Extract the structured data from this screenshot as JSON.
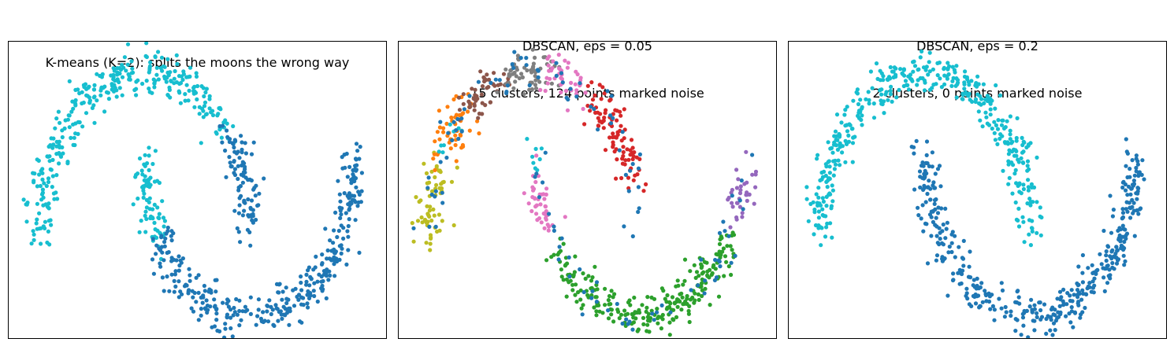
{
  "chart_data": [
    {
      "type": "scatter",
      "title_lines": [
        "K-means (K=2): splits the moons the wrong way"
      ],
      "xlabel": "",
      "ylabel": "",
      "xlim": [
        -1.3,
        2.3
      ],
      "ylim": [
        -0.65,
        1.2
      ],
      "grid": false,
      "ticks": false,
      "colors": {
        "cluster_a": "#17becf",
        "cluster_b": "#1f77b4"
      },
      "series": [
        {
          "color_key": "cluster_a",
          "arcs": [
            {
              "moon": "upper",
              "t_range": [
                0.22,
                1.0
              ]
            },
            {
              "moon": "lower",
              "t_range": [
                0.0,
                0.18
              ]
            }
          ]
        },
        {
          "color_key": "cluster_b",
          "arcs": [
            {
              "moon": "upper",
              "t_range": [
                0.0,
                0.22
              ]
            },
            {
              "moon": "lower",
              "t_range": [
                0.18,
                1.0
              ]
            }
          ]
        }
      ]
    },
    {
      "type": "scatter",
      "title_lines": [
        "DBSCAN, eps = 0.05",
        "15 clusters, 124 points marked noise"
      ],
      "xlabel": "",
      "ylabel": "",
      "xlim": [
        -1.3,
        2.3
      ],
      "ylim": [
        -0.65,
        1.2
      ],
      "grid": false,
      "ticks": false,
      "colors": {
        "noise": "#1f77b4",
        "orange": "#ff7f0e",
        "brown": "#8c564b",
        "gray": "#7f7f7f",
        "pink": "#e377c2",
        "red": "#d62728",
        "olive": "#bcbd22",
        "green": "#2ca02c",
        "purple": "#9467bd",
        "cyan": "#17becf"
      },
      "series": [
        {
          "color_key": "olive",
          "arcs": [
            {
              "moon": "upper",
              "t_range": [
                0.85,
                1.0
              ]
            }
          ]
        },
        {
          "color_key": "orange",
          "arcs": [
            {
              "moon": "upper",
              "t_range": [
                0.72,
                0.85
              ]
            }
          ]
        },
        {
          "color_key": "brown",
          "arcs": [
            {
              "moon": "upper",
              "t_range": [
                0.6,
                0.72
              ]
            }
          ]
        },
        {
          "color_key": "gray",
          "arcs": [
            {
              "moon": "upper",
              "t_range": [
                0.46,
                0.6
              ]
            }
          ]
        },
        {
          "color_key": "pink",
          "arcs": [
            {
              "moon": "upper",
              "t_range": [
                0.36,
                0.46
              ]
            },
            {
              "moon": "lower",
              "t_range": [
                0.06,
                0.16
              ]
            }
          ]
        },
        {
          "color_key": "red",
          "arcs": [
            {
              "moon": "upper",
              "t_range": [
                0.1,
                0.32
              ]
            }
          ]
        },
        {
          "color_key": "green",
          "arcs": [
            {
              "moon": "lower",
              "t_range": [
                0.22,
                0.82
              ]
            }
          ]
        },
        {
          "color_key": "purple",
          "arcs": [
            {
              "moon": "lower",
              "t_range": [
                0.88,
                0.96
              ]
            }
          ]
        },
        {
          "color_key": "cyan",
          "arcs": [
            {
              "moon": "upper",
              "t_range": [
                0.8,
                0.82
              ]
            },
            {
              "moon": "lower",
              "t_range": [
                0.0,
                0.02
              ]
            }
          ]
        },
        {
          "color_key": "noise",
          "noise_points": 124
        }
      ]
    },
    {
      "type": "scatter",
      "title_lines": [
        "DBSCAN, eps = 0.2",
        "2 clusters, 0 points marked noise"
      ],
      "xlabel": "",
      "ylabel": "",
      "xlim": [
        -1.3,
        2.3
      ],
      "ylim": [
        -0.65,
        1.2
      ],
      "grid": false,
      "ticks": false,
      "colors": {
        "cluster_a": "#17becf",
        "cluster_b": "#1f77b4"
      },
      "series": [
        {
          "color_key": "cluster_a",
          "arcs": [
            {
              "moon": "upper",
              "t_range": [
                0.0,
                1.0
              ]
            }
          ]
        },
        {
          "color_key": "cluster_b",
          "arcs": [
            {
              "moon": "lower",
              "t_range": [
                0.0,
                1.0
              ]
            }
          ]
        }
      ]
    }
  ]
}
